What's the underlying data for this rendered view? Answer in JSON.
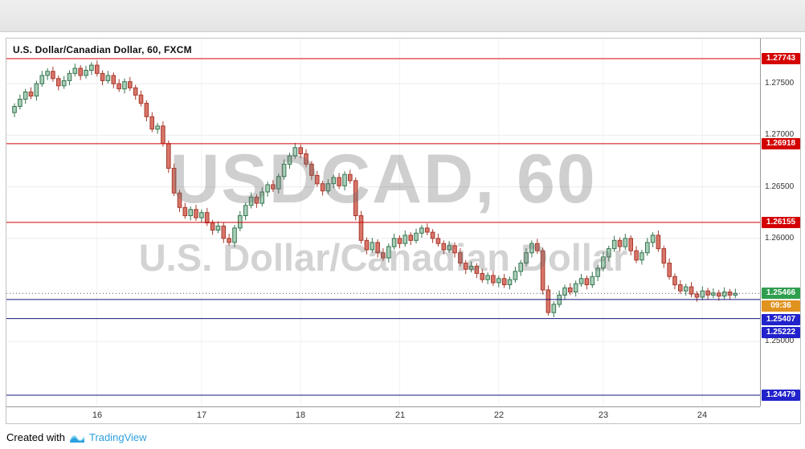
{
  "chart_data": {
    "type": "candlestick",
    "title": "U.S. Dollar/Canadian Dollar, 60, FXCM",
    "symbol": "USDCAD",
    "interval": "60",
    "exchange": "FXCM",
    "watermark": {
      "line1": "USDCAD, 60",
      "line2": "U.S. Dollar/Canadian Dollar"
    },
    "ylim": [
      1.2437,
      1.27938
    ],
    "grid": true,
    "legend_position": "top-left",
    "closes": [
      1.2728,
      1.2735,
      1.2742,
      1.2738,
      1.275,
      1.2758,
      1.2762,
      1.2755,
      1.2748,
      1.2753,
      1.276,
      1.2765,
      1.2758,
      1.2763,
      1.2768,
      1.276,
      1.2753,
      1.2758,
      1.275,
      1.2745,
      1.2752,
      1.2746,
      1.2739,
      1.2731,
      1.2718,
      1.2706,
      1.2709,
      1.2692,
      1.2668,
      1.2644,
      1.263,
      1.2622,
      1.2628,
      1.262,
      1.2625,
      1.2615,
      1.2608,
      1.2612,
      1.26,
      1.2596,
      1.261,
      1.2622,
      1.2632,
      1.264,
      1.2634,
      1.2645,
      1.2652,
      1.2648,
      1.266,
      1.2672,
      1.268,
      1.2688,
      1.2682,
      1.2672,
      1.2661,
      1.2653,
      1.2646,
      1.2653,
      1.2659,
      1.2651,
      1.2662,
      1.2656,
      1.2622,
      1.2598,
      1.2589,
      1.2596,
      1.2586,
      1.2581,
      1.2592,
      1.26,
      1.2595,
      1.2603,
      1.2598,
      1.2605,
      1.261,
      1.2606,
      1.26,
      1.2595,
      1.2589,
      1.2593,
      1.2586,
      1.2576,
      1.257,
      1.2573,
      1.2566,
      1.256,
      1.2564,
      1.2557,
      1.2561,
      1.2555,
      1.256,
      1.2568,
      1.2576,
      1.2586,
      1.2595,
      1.2588,
      1.255,
      1.2528,
      1.2536,
      1.2545,
      1.2552,
      1.2548,
      1.2556,
      1.2561,
      1.2555,
      1.2563,
      1.2571,
      1.2582,
      1.259,
      1.2598,
      1.2592,
      1.26,
      1.2588,
      1.2579,
      1.2586,
      1.2596,
      1.2603,
      1.259,
      1.2576,
      1.2563,
      1.2555,
      1.2549,
      1.2553,
      1.2546,
      1.2543,
      1.2549,
      1.2545,
      1.2547,
      1.2544,
      1.2548,
      1.2545,
      1.25466
    ],
    "x_ticks": [
      {
        "label": "16",
        "bar": 15
      },
      {
        "label": "17",
        "bar": 34
      },
      {
        "label": "18",
        "bar": 52
      },
      {
        "label": "21",
        "bar": 70
      },
      {
        "label": "22",
        "bar": 88
      },
      {
        "label": "23",
        "bar": 107
      },
      {
        "label": "24",
        "bar": 125
      }
    ],
    "y_ticks": [
      {
        "label": "1.27500",
        "value": 1.275
      },
      {
        "label": "1.27000",
        "value": 1.27
      },
      {
        "label": "1.26500",
        "value": 1.265
      },
      {
        "label": "1.26000",
        "value": 1.26
      },
      {
        "label": "1.25000",
        "value": 1.25
      }
    ],
    "levels": [
      {
        "price": 1.27743,
        "label": "1.27743",
        "line_color": "#d40000",
        "badge_color": "#d40000",
        "badge": "at-line"
      },
      {
        "price": 1.26918,
        "label": "1.26918",
        "line_color": "#d40000",
        "badge_color": "#d40000",
        "badge": "at-line"
      },
      {
        "price": 1.26155,
        "label": "1.26155",
        "line_color": "#d40000",
        "badge_color": "#d40000",
        "badge": "at-line"
      },
      {
        "price": 1.25407,
        "label": "1.25407",
        "line_color": "#14147a",
        "badge_color": "#2222cc",
        "badge": "stack"
      },
      {
        "price": 1.25222,
        "label": "1.25222",
        "line_color": "#14147a",
        "badge_color": "#2222cc",
        "badge": "stack"
      },
      {
        "price": 1.24479,
        "label": "1.24479",
        "line_color": "#14147a",
        "badge_color": "#2222cc",
        "badge": "at-line"
      }
    ],
    "last_price": {
      "value": 1.25466,
      "label": "1.25466",
      "time": "09:36",
      "badge_color": "#2f9e4f",
      "time_badge_color": "#e0921f",
      "line_color": "#555555"
    },
    "colors": {
      "up_fill": "#a9cfb9",
      "up_border": "#37744f",
      "down_fill": "#d9756a",
      "down_border": "#a63a2c",
      "grid_h": "#ececec",
      "grid_v": "#f1f1f1",
      "axis_text": "#333333"
    }
  },
  "footer": {
    "created_with": "Created with",
    "brand": "TradingView",
    "brand_color": "#2e9fdf"
  }
}
